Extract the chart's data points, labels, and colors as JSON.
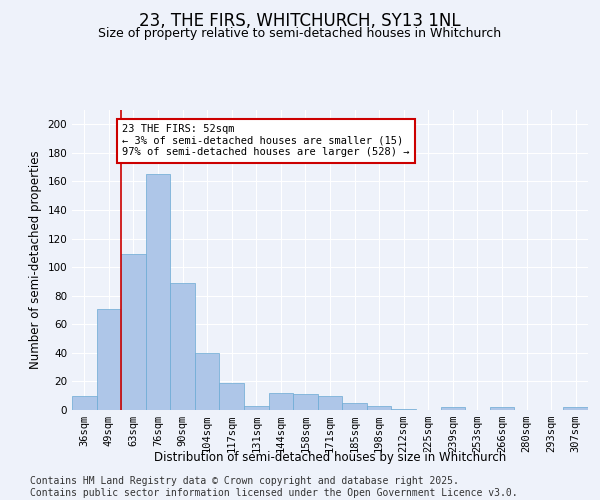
{
  "title": "23, THE FIRS, WHITCHURCH, SY13 1NL",
  "subtitle": "Size of property relative to semi-detached houses in Whitchurch",
  "xlabel": "Distribution of semi-detached houses by size in Whitchurch",
  "ylabel": "Number of semi-detached properties",
  "categories": [
    "36sqm",
    "49sqm",
    "63sqm",
    "76sqm",
    "90sqm",
    "104sqm",
    "117sqm",
    "131sqm",
    "144sqm",
    "158sqm",
    "171sqm",
    "185sqm",
    "198sqm",
    "212sqm",
    "225sqm",
    "239sqm",
    "253sqm",
    "266sqm",
    "280sqm",
    "293sqm",
    "307sqm"
  ],
  "values": [
    10,
    71,
    109,
    165,
    89,
    40,
    19,
    3,
    12,
    11,
    10,
    5,
    3,
    1,
    0,
    2,
    0,
    2,
    0,
    0,
    2
  ],
  "bar_color": "#aec6e8",
  "bar_edge_color": "#6aaad4",
  "annotation_title": "23 THE FIRS: 52sqm",
  "annotation_line1": "← 3% of semi-detached houses are smaller (15)",
  "annotation_line2": "97% of semi-detached houses are larger (528) →",
  "annotation_box_color": "#ffffff",
  "annotation_box_edge": "#cc0000",
  "vline_color": "#cc0000",
  "vline_x": 1.5,
  "ylim": [
    0,
    210
  ],
  "yticks": [
    0,
    20,
    40,
    60,
    80,
    100,
    120,
    140,
    160,
    180,
    200
  ],
  "footer_line1": "Contains HM Land Registry data © Crown copyright and database right 2025.",
  "footer_line2": "Contains public sector information licensed under the Open Government Licence v3.0.",
  "background_color": "#eef2fa",
  "grid_color": "#ffffff",
  "title_fontsize": 12,
  "subtitle_fontsize": 9,
  "axis_label_fontsize": 8.5,
  "tick_fontsize": 7.5,
  "footer_fontsize": 7,
  "ann_fontsize": 7.5
}
